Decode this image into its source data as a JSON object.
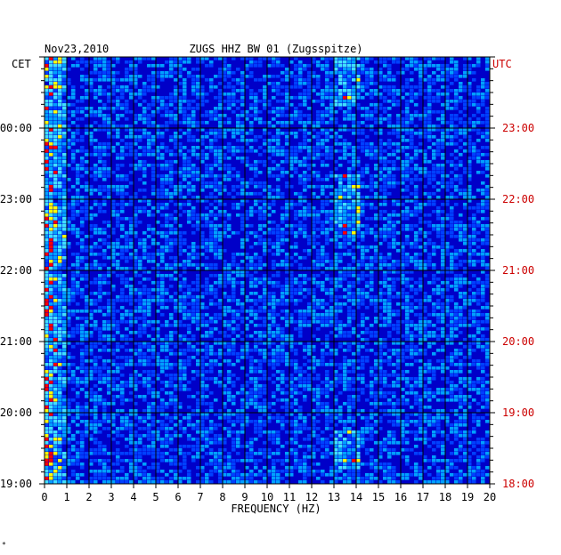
{
  "chart_data": {
    "type": "heatmap",
    "title": "ZUGS HHZ BW 01 (Zugsspitze)",
    "date": "Nov23,2010",
    "left_axis_label": "CET",
    "right_axis_label": "UTC",
    "xlabel": "FREQUENCY (HZ)",
    "xlim": [
      0,
      20
    ],
    "x_ticks": [
      "0",
      "1",
      "2",
      "3",
      "4",
      "5",
      "6",
      "7",
      "8",
      "9",
      "10",
      "11",
      "12",
      "13",
      "14",
      "15",
      "16",
      "17",
      "18",
      "19",
      "20"
    ],
    "cet_ticks": [
      "00:00",
      "23:00",
      "22:00",
      "21:00",
      "20:00",
      "19:00"
    ],
    "utc_ticks": [
      "23:00",
      "22:00",
      "21:00",
      "20:00",
      "19:00",
      "18:00"
    ],
    "colors": {
      "background": "#0000c8",
      "low": "#0000a0",
      "mid": "#00a0ff",
      "high": "#ffff00",
      "peak": "#ff0000",
      "grid": "#000000",
      "cet_text": "#000000",
      "utc_text": "#cc0000"
    },
    "energy_bands": [
      {
        "freq_range": [
          0.0,
          1.0
        ],
        "note": "persistent low-frequency noise"
      },
      {
        "freq_range": [
          12.8,
          14.2
        ],
        "note": "intermittent tonal energy near 13.5 Hz"
      }
    ]
  },
  "corner_mark": "*"
}
